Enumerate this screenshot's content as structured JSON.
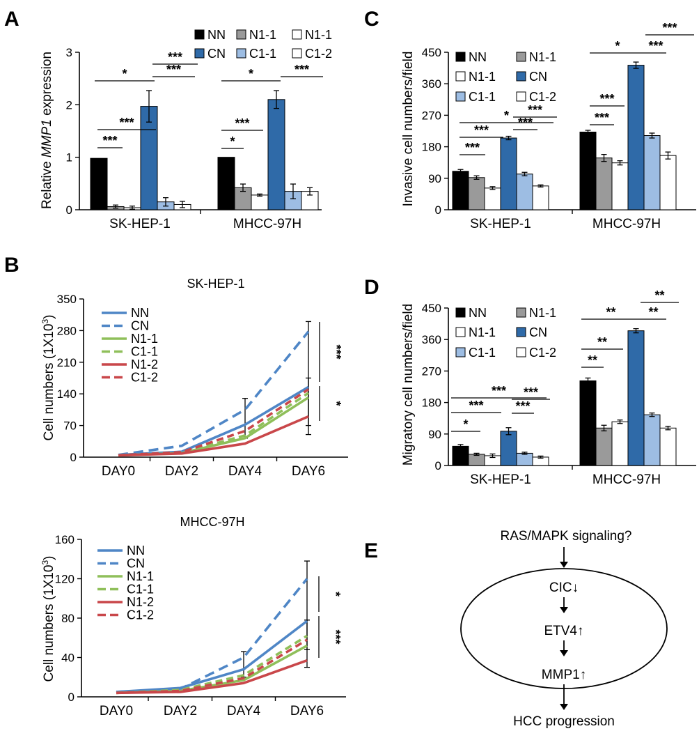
{
  "figure": {
    "panel_letters": [
      "A",
      "B",
      "C",
      "D",
      "E"
    ]
  },
  "colors": {
    "NN": "#000000",
    "CN": "#2f6aa8",
    "N1-1": "#9a9a9a",
    "C1-1": "#9dbde3",
    "open": "#ffffff",
    "line_blue": "#4f86c6",
    "line_green": "#8fbf5a",
    "line_red": "#c9474a"
  },
  "chart_data": [
    {
      "panel": "A",
      "type": "bar",
      "ylabel": "Relative MMP1 expression",
      "ylabel_parts": [
        "Relative ",
        "MMP1",
        " expression"
      ],
      "ylim": [
        0,
        3
      ],
      "yticks": [
        "0",
        "1",
        "2",
        "3"
      ],
      "categories": [
        "SK-HEP-1",
        "MHCC-97H"
      ],
      "legend_position": "top",
      "legend": [
        "NN",
        "N1-1",
        "N1-1",
        "CN",
        "C1-1",
        "C1-2"
      ],
      "series": [
        {
          "name": "NN",
          "values": [
            0.98,
            1.0
          ],
          "err": [
            0,
            0
          ]
        },
        {
          "name": "N1-1",
          "values": [
            0.06,
            0.42
          ],
          "err": [
            0.03,
            0.07
          ]
        },
        {
          "name": "N1-1",
          "values": [
            0.04,
            0.28
          ],
          "err": [
            0.03,
            0.02
          ]
        },
        {
          "name": "CN",
          "values": [
            1.97,
            2.1
          ],
          "err": [
            0.3,
            0.17
          ]
        },
        {
          "name": "C1-1",
          "values": [
            0.15,
            0.35
          ],
          "err": [
            0.08,
            0.14
          ]
        },
        {
          "name": "C1-2",
          "values": [
            0.1,
            0.35
          ],
          "err": [
            0.06,
            0.07
          ]
        }
      ],
      "significance": [
        "*",
        "***",
        "***",
        "***",
        "***",
        "*",
        "***",
        "*",
        "***"
      ]
    },
    {
      "panel": "B",
      "type": "line",
      "title": "SK-HEP-1",
      "ylabel": "Cell numbers (1X10",
      "ylabel_sup": "3",
      "ylabel_end": ")",
      "ylim": [
        0,
        350
      ],
      "yticks": [
        "0",
        "70",
        "140",
        "210",
        "280",
        "350"
      ],
      "x": [
        "DAY0",
        "DAY2",
        "DAY4",
        "DAY6"
      ],
      "legend_position": "top-left",
      "series": [
        {
          "name": "NN",
          "values": [
            5,
            12,
            72,
            155
          ]
        },
        {
          "name": "CN",
          "values": [
            5,
            25,
            105,
            278
          ]
        },
        {
          "name": "N1-1",
          "values": [
            4,
            9,
            42,
            132
          ]
        },
        {
          "name": "C1-1",
          "values": [
            4,
            10,
            48,
            142
          ]
        },
        {
          "name": "N1-2",
          "values": [
            4,
            8,
            30,
            90
          ]
        },
        {
          "name": "C1-2",
          "values": [
            4,
            11,
            58,
            150
          ]
        }
      ],
      "significance": [
        "***",
        "*"
      ]
    },
    {
      "panel": "B",
      "type": "line",
      "title": "MHCC-97H",
      "ylabel": "Cell numbers (1X10",
      "ylabel_sup": "3",
      "ylabel_end": ")",
      "ylim": [
        0,
        160
      ],
      "yticks": [
        "0",
        "40",
        "80",
        "120",
        "160"
      ],
      "x": [
        "DAY0",
        "DAY2",
        "DAY4",
        "DAY6"
      ],
      "legend_position": "top-left",
      "series": [
        {
          "name": "NN",
          "values": [
            5,
            9,
            28,
            77
          ]
        },
        {
          "name": "CN",
          "values": [
            5,
            8,
            40,
            120
          ]
        },
        {
          "name": "N1-1",
          "values": [
            4,
            6,
            17,
            52
          ]
        },
        {
          "name": "C1-1",
          "values": [
            4,
            7,
            22,
            62
          ]
        },
        {
          "name": "N1-2",
          "values": [
            4,
            5,
            14,
            37
          ]
        },
        {
          "name": "C1-2",
          "values": [
            4,
            6,
            19,
            58
          ]
        }
      ],
      "significance": [
        "*",
        "***"
      ]
    },
    {
      "panel": "C",
      "type": "bar",
      "ylabel": "Invasive cell numbers/field",
      "ylim": [
        0,
        450
      ],
      "yticks": [
        "0",
        "90",
        "180",
        "270",
        "360",
        "450"
      ],
      "categories": [
        "SK-HEP-1",
        "MHCC-97H"
      ],
      "legend_position": "top-left",
      "legend": [
        "NN",
        "N1-1",
        "N1-1",
        "CN",
        "C1-1",
        "C1-2"
      ],
      "series": [
        {
          "name": "NN",
          "values": [
            110,
            222
          ],
          "err": [
            5,
            5
          ]
        },
        {
          "name": "N1-1",
          "values": [
            92,
            148
          ],
          "err": [
            5,
            10
          ]
        },
        {
          "name": "N1-1",
          "values": [
            62,
            134
          ],
          "err": [
            4,
            6
          ]
        },
        {
          "name": "CN",
          "values": [
            205,
            413
          ],
          "err": [
            5,
            9
          ]
        },
        {
          "name": "C1-1",
          "values": [
            102,
            212
          ],
          "err": [
            5,
            7
          ]
        },
        {
          "name": "C1-2",
          "values": [
            68,
            155
          ],
          "err": [
            3,
            10
          ]
        }
      ],
      "significance": [
        "*",
        "***",
        "***",
        "***",
        "***",
        "*",
        "***",
        "***",
        "***",
        "***"
      ]
    },
    {
      "panel": "D",
      "type": "bar",
      "ylabel": "Migratory cell numbers/field",
      "ylim": [
        0,
        450
      ],
      "yticks": [
        "0",
        "90",
        "180",
        "270",
        "360",
        "450"
      ],
      "categories": [
        "SK-HEP-1",
        "MHCC-97H"
      ],
      "legend_position": "top-left",
      "legend": [
        "NN",
        "N1-1",
        "N1-1",
        "CN",
        "C1-1",
        "C1-2"
      ],
      "series": [
        {
          "name": "NN",
          "values": [
            55,
            242
          ],
          "err": [
            5,
            8
          ]
        },
        {
          "name": "N1-1",
          "values": [
            32,
            107
          ],
          "err": [
            3,
            8
          ]
        },
        {
          "name": "N1-1",
          "values": [
            28,
            125
          ],
          "err": [
            5,
            5
          ]
        },
        {
          "name": "CN",
          "values": [
            98,
            385
          ],
          "err": [
            10,
            6
          ]
        },
        {
          "name": "C1-1",
          "values": [
            35,
            145
          ],
          "err": [
            3,
            5
          ]
        },
        {
          "name": "C1-2",
          "values": [
            24,
            107
          ],
          "err": [
            3,
            5
          ]
        }
      ],
      "significance": [
        "***",
        "***",
        "*",
        "***",
        "***",
        "**",
        "**",
        "**",
        "**",
        "**"
      ]
    }
  ],
  "pathway": {
    "top": "RAS/MAPK signaling?",
    "nodes": [
      "CIC↓",
      "ETV4↑",
      "MMP1↑"
    ],
    "bottom": "HCC progression"
  }
}
